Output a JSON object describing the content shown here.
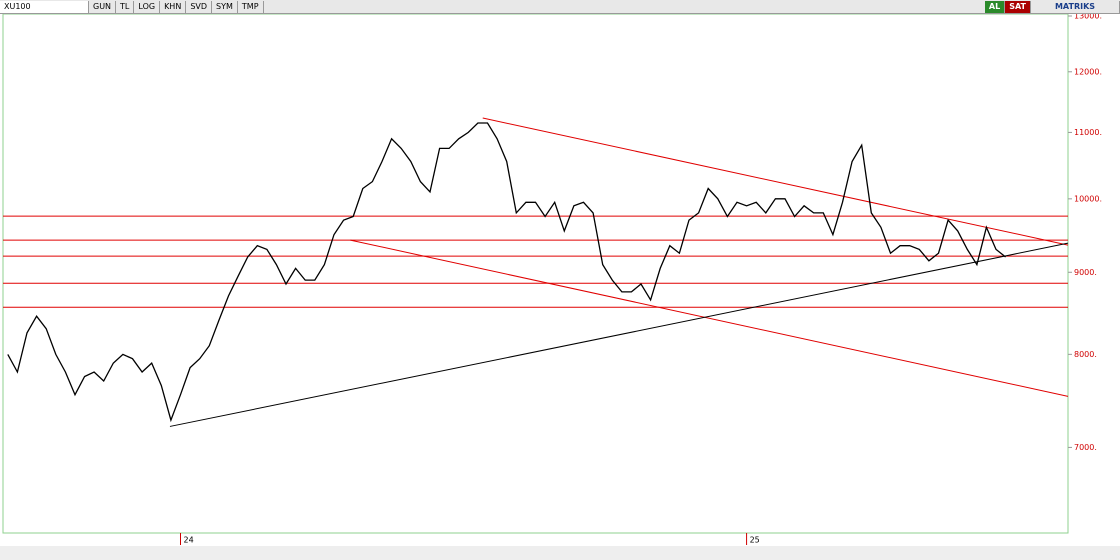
{
  "toolbar": {
    "symbol": "XU100",
    "buttons": [
      "GUN",
      "TL",
      "LOG",
      "KHN",
      "SVD",
      "SYM",
      "TMP"
    ],
    "buy": "AL",
    "sell": "SAT",
    "brand": "MATRIKS"
  },
  "chart_data": {
    "type": "line",
    "log_scale": true,
    "categories": [
      null,
      null,
      null,
      null,
      null,
      null,
      null,
      null,
      null,
      null,
      null,
      null,
      null,
      null,
      null,
      null,
      null,
      null,
      "24",
      null,
      null,
      null,
      null,
      null,
      null,
      null,
      null,
      null,
      null,
      null,
      null,
      null,
      null,
      null,
      null,
      null,
      null,
      null,
      null,
      null,
      null,
      null,
      null,
      null,
      null,
      null,
      null,
      null,
      null,
      null,
      null,
      null,
      null,
      null,
      null,
      null,
      null,
      null,
      null,
      null,
      null,
      null,
      null,
      null,
      null,
      null,
      null,
      null,
      null,
      null,
      null,
      null,
      null,
      null,
      null,
      null,
      null,
      "25",
      null,
      null,
      null,
      null,
      null,
      null,
      null,
      null,
      null,
      null,
      null,
      null,
      null,
      null,
      null,
      null,
      null,
      null,
      null,
      null,
      null,
      null,
      null,
      null,
      null,
      null,
      null
    ],
    "series": [
      {
        "color": "#000000",
        "values": [
          8000,
          7800,
          8250,
          8450,
          8300,
          8000,
          7800,
          7550,
          7750,
          7800,
          7700,
          7900,
          8000,
          7950,
          7800,
          7900,
          7650,
          7280,
          7550,
          7850,
          7950,
          8100,
          8400,
          8700,
          8950,
          9200,
          9350,
          9300,
          9100,
          8850,
          9050,
          8900,
          8900,
          9100,
          9500,
          9700,
          9750,
          10150,
          10250,
          10550,
          10900,
          10750,
          10550,
          10250,
          10100,
          10750,
          10750,
          10900,
          11000,
          11150,
          11150,
          10900,
          10550,
          9800,
          9950,
          9950,
          9750,
          9950,
          9550,
          9900,
          9950,
          9800,
          9100,
          8900,
          8750,
          8750,
          8850,
          8650,
          9050,
          9350,
          9250,
          9700,
          9800,
          10150,
          10000,
          9750,
          9950,
          9900,
          9950,
          9800,
          10000,
          10000,
          9750,
          9900,
          9800,
          9800,
          9500,
          9950,
          10550,
          10800,
          9800,
          9600,
          9250,
          9350,
          9350,
          9300,
          9150,
          9250,
          9700,
          9550,
          9300,
          9100,
          9600,
          9300,
          9200
        ]
      }
    ],
    "xlim": [
      -0.5,
      110.5
    ],
    "ylim": [
      6200,
      13150
    ],
    "yticks": [
      {
        "value": 13000,
        "label": "13000."
      },
      {
        "value": 12000,
        "label": "12000."
      },
      {
        "value": 11000,
        "label": "11000."
      },
      {
        "value": 10000,
        "label": "10000."
      },
      {
        "value": 9000,
        "label": "9000."
      },
      {
        "value": 8000,
        "label": "8000."
      },
      {
        "value": 7000,
        "label": "7000."
      }
    ],
    "hlines": {
      "color": "#e00000",
      "values": [
        9755,
        9425,
        9211,
        8860,
        8560
      ]
    },
    "trendlines": [
      {
        "color": "#e00000",
        "x": [
          49.5,
          110.5
        ],
        "values": [
          11230,
          9358
        ]
      },
      {
        "color": "#e00000",
        "x": [
          35.7,
          110.5
        ],
        "values": [
          9425,
          7532
        ]
      },
      {
        "color": "#000000",
        "x": [
          16.9,
          110.5
        ],
        "values": [
          7214,
          9384
        ]
      }
    ]
  }
}
